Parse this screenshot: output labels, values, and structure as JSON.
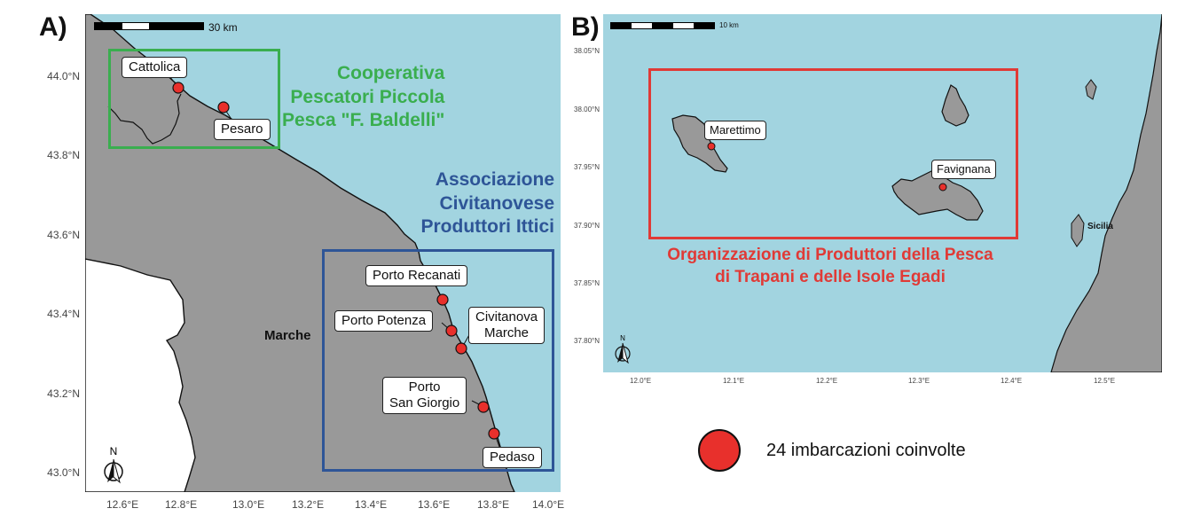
{
  "panel_a": {
    "letter": "A)",
    "y_ticks": [
      "44.0°N",
      "43.8°N",
      "43.6°N",
      "43.4°N",
      "43.2°N",
      "43.0°N"
    ],
    "x_ticks": [
      "12.6°E",
      "12.8°E",
      "13.0°E",
      "13.2°E",
      "13.4°E",
      "13.6°E",
      "13.8°E",
      "14.0°E"
    ],
    "scale_label": "30 km",
    "region_label": "Marche",
    "north_label": "N",
    "ports": [
      {
        "label": "Cattolica"
      },
      {
        "label": "Pesaro"
      },
      {
        "label": "Porto Recanati"
      },
      {
        "label": "Porto Potenza"
      },
      {
        "label_line1": "Civitanova",
        "label_line2": "Marche"
      },
      {
        "label_line1": "Porto",
        "label_line2": "San Giorgio"
      },
      {
        "label": "Pedaso"
      }
    ],
    "org_green": {
      "line1": "Cooperativa",
      "line2": "Pescatori Piccola",
      "line3": "Pesca \"F. Baldelli\"",
      "color": "#3aae4f"
    },
    "org_blue": {
      "line1": "Associazione",
      "line2": "Civitanovese",
      "line3": "Produttori Ittici",
      "color": "#2e5597"
    }
  },
  "panel_b": {
    "letter": "B)",
    "y_ticks": [
      "38.05°N",
      "38.00°N",
      "37.95°N",
      "37.90°N",
      "37.85°N",
      "37.80°N"
    ],
    "x_ticks": [
      "12.0°E",
      "12.1°E",
      "12.2°E",
      "12.3°E",
      "12.4°E",
      "12.5°E"
    ],
    "scale_label": "10 km",
    "north_label": "N",
    "sicily_label": "Sicilia",
    "ports": [
      {
        "label": "Marettimo"
      },
      {
        "label": "Favignana"
      }
    ],
    "org_red": {
      "line1": "Organizzazione di Produttori della Pesca",
      "line2": "di Trapani e delle Isole Egadi",
      "color": "#e03a36"
    }
  },
  "legend": {
    "text": "24 imbarcazioni coinvolte",
    "marker_color": "#e8302c"
  },
  "colors": {
    "sea": "#a2d4e0",
    "land": "#999999",
    "white_land": "#ffffff",
    "marker": "#e8302c"
  }
}
